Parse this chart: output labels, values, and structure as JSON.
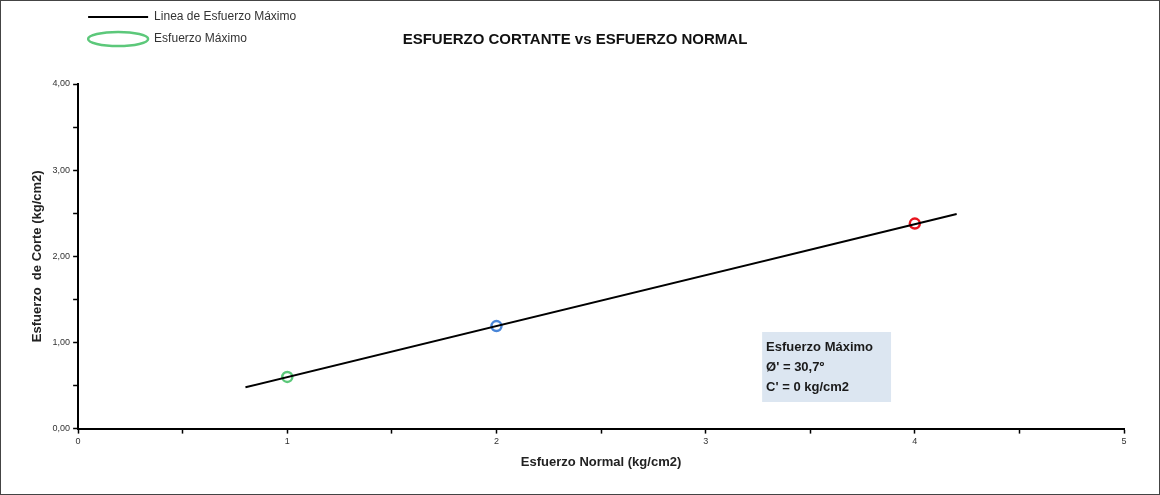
{
  "chart_data": {
    "type": "scatter",
    "title": "ESFUERZO CORTANTE vs ESFUERZO NORMAL",
    "xlabel": "Esfuerzo Normal (kg/cm2)",
    "ylabel": "Esfuerzo  de Corte (kg/cm2)",
    "xlim": [
      0,
      5
    ],
    "ylim": [
      0,
      4
    ],
    "xticks": [
      0,
      {
        "value": 0.5,
        "label": null
      },
      1,
      {
        "value": 1.5,
        "label": null
      },
      2,
      {
        "value": 2.5,
        "label": null
      },
      3,
      {
        "value": 3.5,
        "label": null
      },
      4,
      {
        "value": 4.5,
        "label": null
      },
      5
    ],
    "yticks": [
      {
        "value": 0,
        "label": "0,00"
      },
      {
        "value": 0.5,
        "label": null
      },
      {
        "value": 1,
        "label": "1,00"
      },
      {
        "value": 1.5,
        "label": null
      },
      {
        "value": 2,
        "label": "2,00"
      },
      {
        "value": 2.5,
        "label": null
      },
      {
        "value": 3,
        "label": "3,00"
      },
      {
        "value": 3.5,
        "label": null
      },
      {
        "value": 4,
        "label": "4,00"
      }
    ],
    "grid": false,
    "legend": "top left",
    "series": [
      {
        "name": "Linea de Esfuerzo Máximo",
        "type": "line",
        "color": "#000000",
        "marker": "none",
        "line_style": "solid",
        "x": [
          0.8,
          4.2
        ],
        "values": [
          0.48,
          2.49
        ]
      },
      {
        "name": "Esfuerzo Máximo",
        "type": "scatter",
        "marker": "circle",
        "colors": [
          "#5cc87a",
          "#4a86d8",
          "#e8141e"
        ],
        "x": [
          1,
          2,
          4
        ],
        "values": [
          0.6,
          1.19,
          2.38
        ]
      }
    ],
    "annotations": [
      "Esfuerzo Máximo",
      "Ø' = 30,7º",
      "C' = 0 kg/cm2"
    ]
  }
}
